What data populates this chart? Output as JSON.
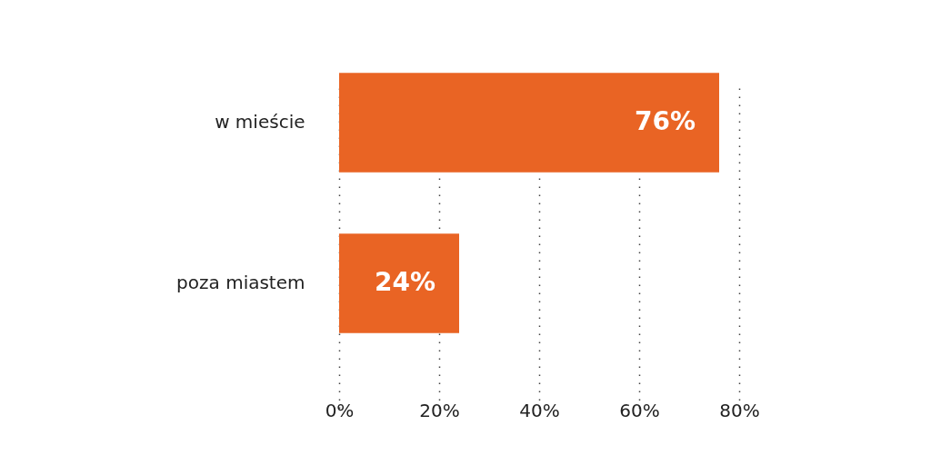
{
  "chart_data": {
    "type": "bar",
    "orientation": "horizontal",
    "categories": [
      "w mieście",
      "poza miastem"
    ],
    "values": [
      76,
      24
    ],
    "color": "#e96424",
    "value_labels": [
      "76%",
      "24%"
    ],
    "xlim": [
      0,
      80
    ],
    "xticks": [
      {
        "value": 0,
        "label": "0%"
      },
      {
        "value": 20,
        "label": "20%"
      },
      {
        "value": 40,
        "label": "40%"
      },
      {
        "value": 60,
        "label": "60%"
      },
      {
        "value": 80,
        "label": "80%"
      }
    ],
    "grid": "x"
  }
}
